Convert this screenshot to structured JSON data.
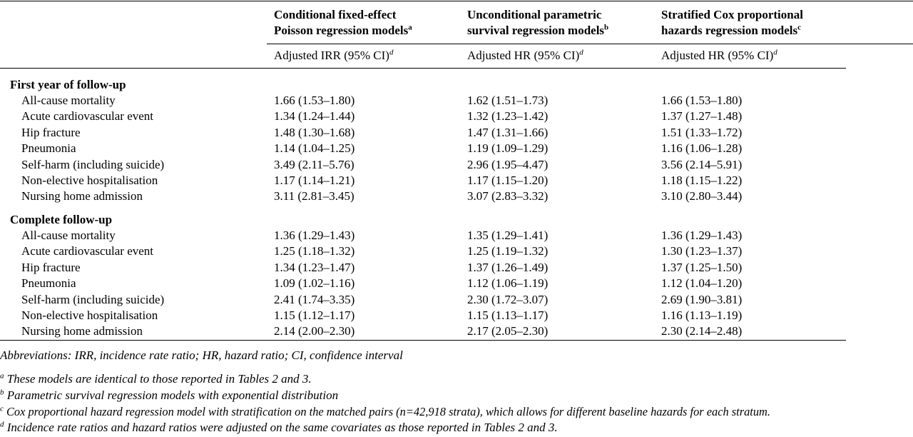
{
  "columns": [
    {
      "title": "Conditional fixed-effect Poisson regression models",
      "title_l1": "Conditional fixed-effect",
      "title_l2": "Poisson regression models",
      "marker": "a",
      "measure": "Adjusted IRR (95% CI)",
      "measure_marker": "d"
    },
    {
      "title": "Unconditional parametric survival regression models",
      "title_l1": "Unconditional parametric",
      "title_l2": "survival regression models",
      "marker": "b",
      "measure": "Adjusted HR (95% CI)",
      "measure_marker": "d"
    },
    {
      "title": "Stratified Cox proportional hazards regression models",
      "title_l1": "Stratified Cox proportional",
      "title_l2": "hazards regression models",
      "marker": "c",
      "measure": "Adjusted HR (95% CI)",
      "measure_marker": "d"
    }
  ],
  "sections": [
    {
      "title": "First year of follow-up",
      "rows": [
        {
          "label": "All-cause mortality",
          "values": [
            "1.66 (1.53–1.80)",
            "1.62 (1.51–1.73)",
            "1.66 (1.53–1.80)"
          ]
        },
        {
          "label": "Acute cardiovascular event",
          "values": [
            "1.34 (1.24–1.44)",
            "1.32 (1.23–1.42)",
            "1.37 (1.27–1.48)"
          ]
        },
        {
          "label": "Hip fracture",
          "values": [
            "1.48 (1.30–1.68)",
            "1.47 (1.31–1.66)",
            "1.51 (1.33–1.72)"
          ]
        },
        {
          "label": "Pneumonia",
          "values": [
            "1.14 (1.04–1.25)",
            "1.19 (1.09–1.29)",
            "1.16 (1.06–1.28)"
          ]
        },
        {
          "label": "Self-harm (including suicide)",
          "values": [
            "3.49 (2.11–5.76)",
            "2.96 (1.95–4.47)",
            "3.56 (2.14–5.91)"
          ]
        },
        {
          "label": "Non-elective hospitalisation",
          "values": [
            "1.17 (1.14–1.21)",
            "1.17 (1.15–1.20)",
            "1.18 (1.15–1.22)"
          ]
        },
        {
          "label": "Nursing home admission",
          "values": [
            "3.11 (2.81–3.45)",
            "3.07 (2.83–3.32)",
            "3.10 (2.80–3.44)"
          ]
        }
      ]
    },
    {
      "title": "Complete follow-up",
      "rows": [
        {
          "label": "All-cause mortality",
          "values": [
            "1.36 (1.29–1.43)",
            "1.35 (1.29–1.41)",
            "1.36 (1.29–1.43)"
          ]
        },
        {
          "label": "Acute cardiovascular event",
          "values": [
            "1.25 (1.18–1.32)",
            "1.25 (1.19–1.32)",
            "1.30 (1.23–1.37)"
          ]
        },
        {
          "label": "Hip fracture",
          "values": [
            "1.34 (1.23–1.47)",
            "1.37 (1.26–1.49)",
            "1.37 (1.25–1.50)"
          ]
        },
        {
          "label": "Pneumonia",
          "values": [
            "1.09 (1.02–1.16)",
            "1.12 (1.06–1.19)",
            "1.12 (1.04–1.20)"
          ]
        },
        {
          "label": "Self-harm (including suicide)",
          "values": [
            "2.41 (1.74–3.35)",
            "2.30 (1.72–3.07)",
            "2.69 (1.90–3.81)"
          ]
        },
        {
          "label": "Non-elective hospitalisation",
          "values": [
            "1.15 (1.12–1.17)",
            "1.15 (1.13–1.17)",
            "1.16 (1.13–1.19)"
          ]
        },
        {
          "label": "Nursing home admission",
          "values": [
            "2.14 (2.00–2.30)",
            "2.17 (2.05–2.30)",
            "2.30 (2.14–2.48)"
          ]
        }
      ]
    }
  ],
  "footnotes": {
    "abbreviations": "Abbreviations: IRR, incidence rate ratio; HR, hazard ratio; CI, confidence interval",
    "notes": [
      {
        "marker": "a",
        "text": " These models are identical to those reported in Tables 2 and 3."
      },
      {
        "marker": "b",
        "text": " Parametric survival regression models with exponential distribution"
      },
      {
        "marker": "c",
        "text": " Cox proportional hazard regression model with stratification on the matched pairs (n=42,918 strata), which allows for different baseline hazards for each stratum."
      },
      {
        "marker": "d",
        "text": " Incidence rate ratios and hazard ratios were adjusted on the same covariates as those reported in Tables 2 and 3."
      }
    ]
  }
}
